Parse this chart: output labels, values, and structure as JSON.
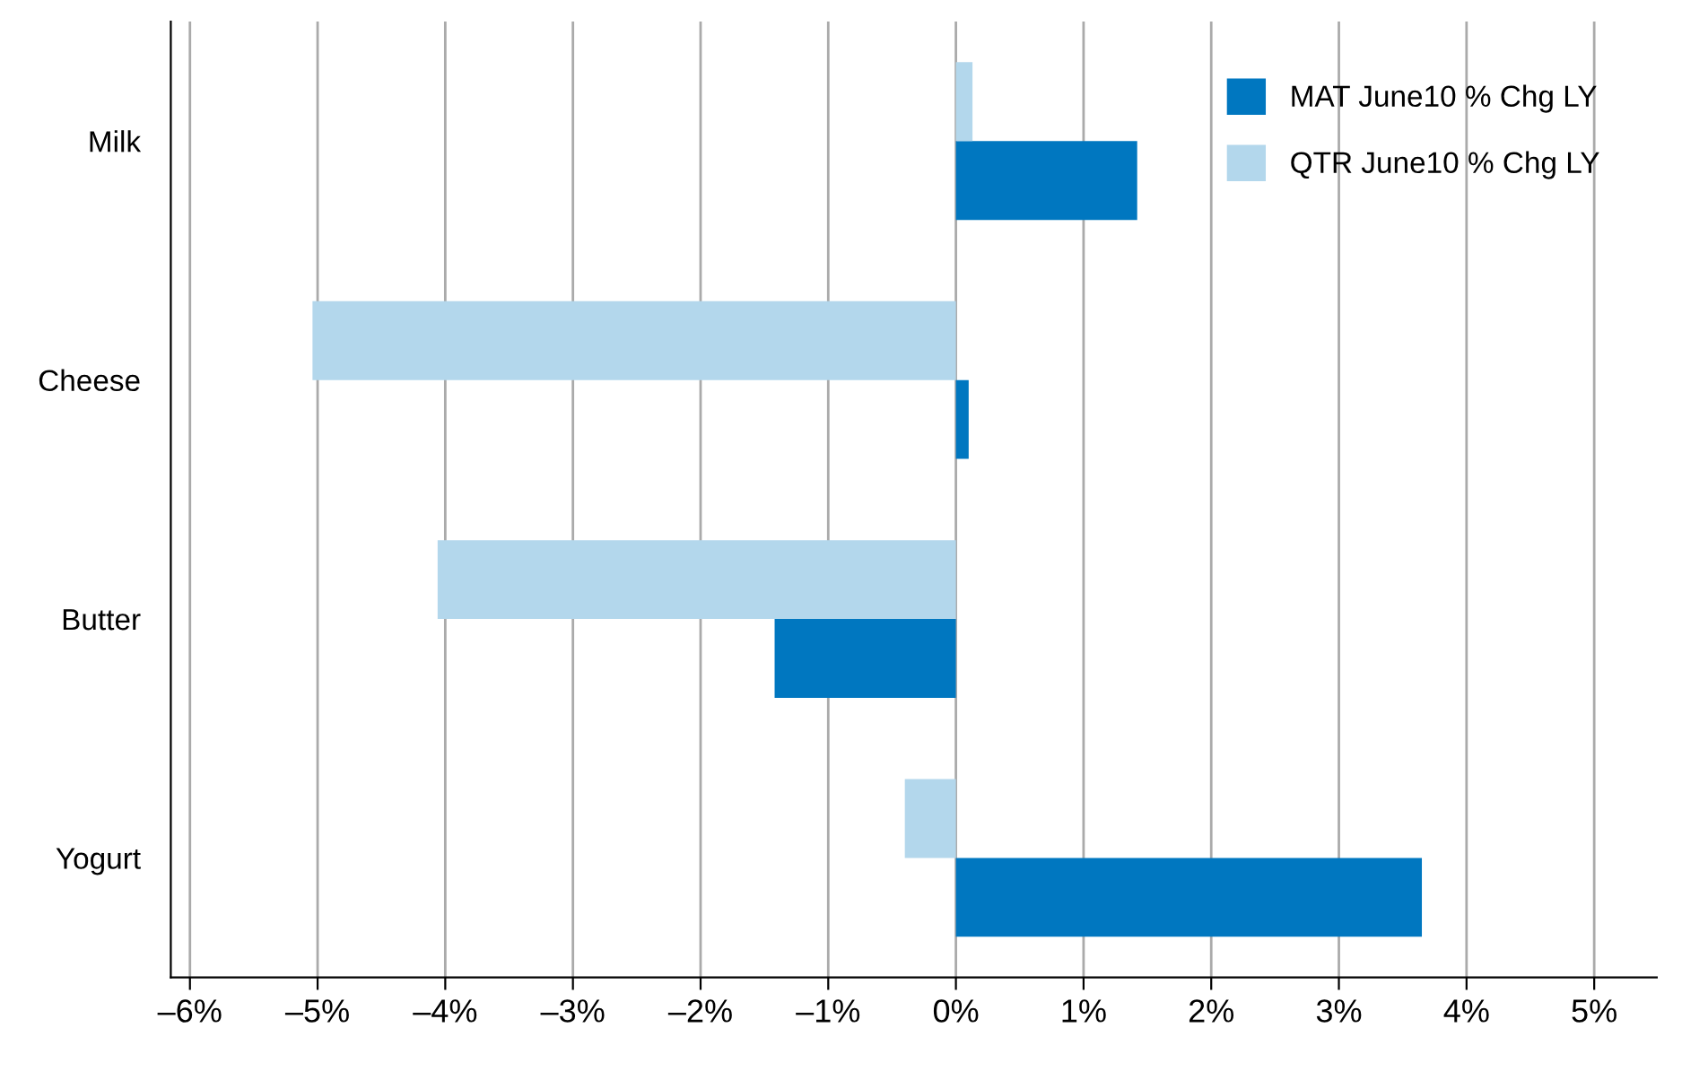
{
  "chart_data": {
    "type": "bar",
    "orientation": "horizontal",
    "categories": [
      "Milk",
      "Cheese",
      "Butter",
      "Yogurt"
    ],
    "series": [
      {
        "name": "MAT June10 % Chg LY",
        "color": "#0077c0",
        "values": [
          1.42,
          0.1,
          -1.42,
          3.65
        ]
      },
      {
        "name": "QTR June10 % Chg LY",
        "color": "#b3d7ec",
        "values": [
          0.13,
          -5.04,
          -4.06,
          -0.4
        ]
      }
    ],
    "xlim": [
      -6.15,
      5.49
    ],
    "xticks": [
      {
        "value": -6,
        "label": "–6%"
      },
      {
        "value": -5,
        "label": "–5%"
      },
      {
        "value": -4,
        "label": "–4%"
      },
      {
        "value": -3,
        "label": "–3%"
      },
      {
        "value": -2,
        "label": "–2%"
      },
      {
        "value": -1,
        "label": "–1%"
      },
      {
        "value": 0,
        "label": "0%"
      },
      {
        "value": 1,
        "label": "1%"
      },
      {
        "value": 2,
        "label": "2%"
      },
      {
        "value": 3,
        "label": "3%"
      },
      {
        "value": 4,
        "label": "4%"
      },
      {
        "value": 5,
        "label": "5%"
      }
    ],
    "grid": "x",
    "legend": "top right"
  }
}
